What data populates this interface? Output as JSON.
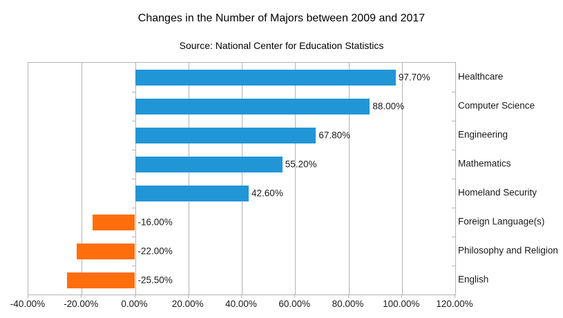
{
  "chart_data": {
    "type": "bar",
    "orientation": "horizontal",
    "title": "Changes in the Number of Majors between 2009 and 2017",
    "subtitle": "Source: National Center for Education Statistics",
    "categories": [
      "Healthcare",
      "Computer Science",
      "Engineering",
      "Mathematics",
      "Homeland Security",
      "Foreign Language(s)",
      "Philosophy and Religion",
      "English"
    ],
    "values": [
      97.7,
      88.0,
      67.8,
      55.2,
      42.6,
      -16.0,
      -22.0,
      -25.5
    ],
    "value_labels": [
      "97.70%",
      "88.00%",
      "67.80%",
      "55.20%",
      "42.60%",
      "-16.00%",
      "-22.00%",
      "-25.50%"
    ],
    "xlabel": "",
    "ylabel": "",
    "xlim": [
      -40,
      120
    ],
    "xtick_values": [
      -40,
      -20,
      0,
      20,
      40,
      60,
      80,
      100,
      120
    ],
    "xtick_labels": [
      "-40.00%",
      "-20.00%",
      "0.00%",
      "20.00%",
      "40.00%",
      "60.00%",
      "80.00%",
      "100.00%",
      "120.00%"
    ],
    "grid": "vertical",
    "legend": "none",
    "category_labels_position": "right",
    "colors": {
      "positive_bar": "#2196d6",
      "negative_bar": "#ff6e0c",
      "gridline": "#b3b3b3",
      "text": "#1a1a1a",
      "background": "#ffffff"
    }
  }
}
